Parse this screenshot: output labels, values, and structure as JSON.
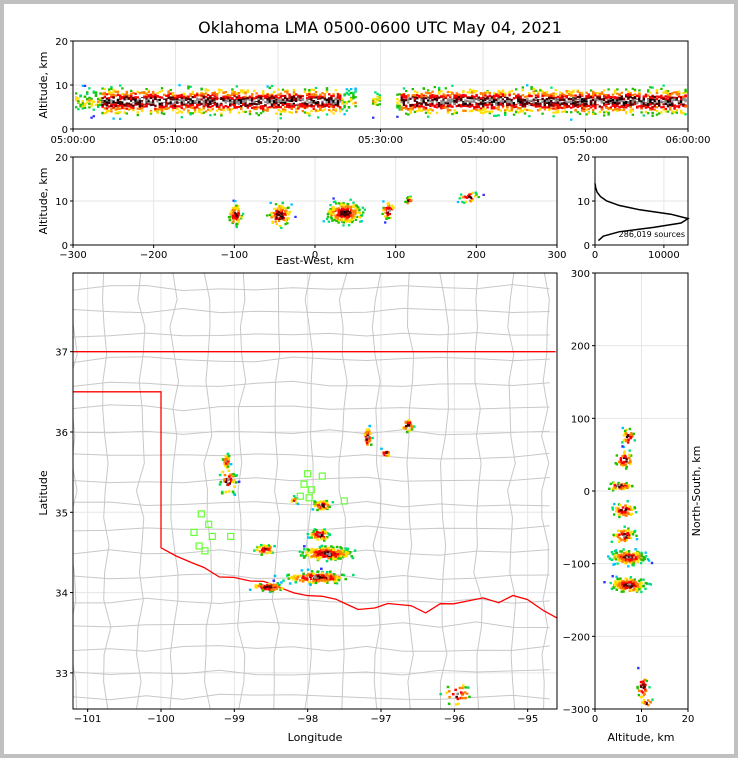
{
  "chart_data": {
    "title": "Oklahoma LMA 0500-0600 UTC May 04, 2021",
    "colormap": [
      "#7f00ff",
      "#3030ff",
      "#00c0ff",
      "#00e070",
      "#20c000",
      "#ffe000",
      "#ff8000",
      "#ff0000",
      "#c00000",
      "#500000",
      "#ffffff",
      "#909090",
      "#000000"
    ],
    "panels": [
      {
        "id": "time-altitude",
        "type": "heatmap",
        "xlabel": "",
        "ylabel": "Altitude, km",
        "xticks": [
          "05:00:00",
          "05:10:00",
          "05:20:00",
          "05:30:00",
          "05:40:00",
          "05:50:00",
          "06:00:00"
        ],
        "yticks": [
          "0",
          "10",
          "20"
        ],
        "ylim": [
          0,
          20
        ]
      },
      {
        "id": "east-west-altitude",
        "type": "heatmap",
        "xlabel": "East-West, km",
        "ylabel": "Altitude, km",
        "xticks": [
          "−300",
          "−200",
          "−100",
          "0",
          "100",
          "200",
          "300"
        ],
        "yticks": [
          "0",
          "10",
          "20"
        ],
        "xlim": [
          -300,
          300
        ],
        "ylim": [
          0,
          20
        ]
      },
      {
        "id": "altitude-histogram",
        "type": "line",
        "annotation": "286,019 sources",
        "xticks": [
          "0",
          "10000"
        ],
        "yticks": [
          "0",
          "10",
          "20"
        ],
        "xlim": [
          0,
          13500
        ],
        "ylim": [
          0,
          20
        ],
        "profile": [
          [
            1,
            500
          ],
          [
            2,
            1200
          ],
          [
            3,
            3500
          ],
          [
            4,
            8500
          ],
          [
            5,
            12500
          ],
          [
            6,
            13500
          ],
          [
            7,
            11000
          ],
          [
            8,
            6500
          ],
          [
            9,
            3500
          ],
          [
            10,
            1700
          ],
          [
            11,
            800
          ],
          [
            12,
            300
          ],
          [
            13,
            100
          ],
          [
            14,
            0
          ]
        ]
      },
      {
        "id": "plan-view",
        "type": "scatter",
        "xlabel": "Longitude",
        "ylabel": "Latitude",
        "xticks": [
          "−101",
          "−100",
          "−99",
          "−98",
          "−97",
          "−96",
          "−95"
        ],
        "yticks": [
          "33",
          "34",
          "35",
          "36",
          "37"
        ],
        "xlim": [
          -101.2,
          -94.6
        ],
        "ylim": [
          32.55,
          37.98
        ],
        "stations": [
          [
            -99.45,
            34.98
          ],
          [
            -99.35,
            34.85
          ],
          [
            -99.55,
            34.75
          ],
          [
            -99.3,
            34.7
          ],
          [
            -99.48,
            34.58
          ],
          [
            -99.4,
            34.52
          ],
          [
            -99.05,
            34.7
          ],
          [
            -98.0,
            35.48
          ],
          [
            -97.8,
            35.45
          ],
          [
            -98.05,
            35.35
          ],
          [
            -97.95,
            35.28
          ],
          [
            -98.1,
            35.2
          ],
          [
            -97.98,
            35.18
          ],
          [
            -97.5,
            35.14
          ]
        ]
      },
      {
        "id": "north-south-altitude",
        "type": "heatmap",
        "xlabel": "Altitude, km",
        "ylabel": "North-South, km",
        "xticks": [
          "0",
          "10",
          "20"
        ],
        "yticks": [
          "−300",
          "−200",
          "−100",
          "0",
          "100",
          "200",
          "300"
        ],
        "xlim": [
          0,
          20
        ],
        "ylim": [
          -300,
          300
        ]
      }
    ]
  }
}
